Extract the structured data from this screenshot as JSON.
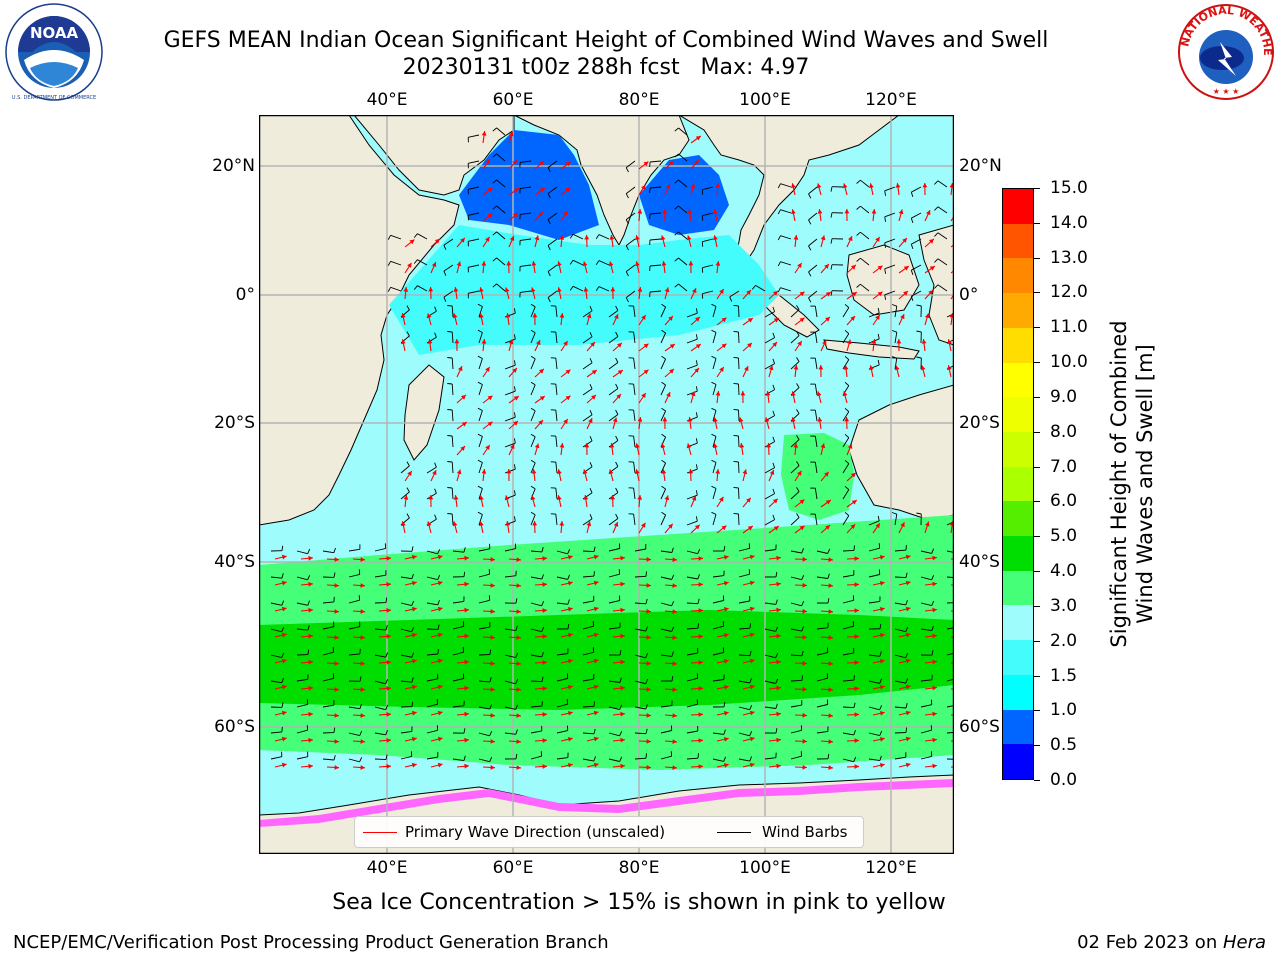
{
  "title": {
    "line1": "GEFS MEAN Indian Ocean Significant Height of Combined Wind Waves and Swell",
    "line2": "20230131 t00z 288h fcst   Max: 4.97"
  },
  "logos": {
    "noaa": {
      "text": "NOAA",
      "ring_text": "NATIONAL OCEANIC AND ATMOSPHERIC ADMINISTRATION · U.S. DEPARTMENT OF COMMERCE"
    },
    "nws": {
      "ring_text": "NATIONAL WEATHER SERVICE"
    }
  },
  "map": {
    "lon_ticks": [
      "40°E",
      "60°E",
      "80°E",
      "100°E",
      "120°E"
    ],
    "lat_ticks_left": [
      "20°N",
      "0°",
      "20°S",
      "40°S",
      "60°S"
    ],
    "lat_ticks_right": [
      "20°N",
      "0°",
      "20°S",
      "40°S",
      "60°S"
    ],
    "land_color": "#efecdc",
    "ocean_base_color": "#9ffcfc"
  },
  "legend": {
    "wave_label": "Primary Wave Direction (unscaled)",
    "wind_label": "Wind Barbs",
    "wave_color": "#ff0000",
    "wind_color": "#000000"
  },
  "colorbar": {
    "label_line1": "Significant Height of Combined",
    "label_line2": "Wind Waves and Swell [m]",
    "ticks": [
      "0.0",
      "0.5",
      "1.0",
      "1.5",
      "2.0",
      "3.0",
      "4.0",
      "5.0",
      "6.0",
      "7.0",
      "8.0",
      "9.0",
      "10.0",
      "11.0",
      "12.0",
      "13.0",
      "14.0",
      "15.0"
    ],
    "colors": [
      "#0000ff",
      "#0066ff",
      "#00ffff",
      "#44fcfc",
      "#9ffcfc",
      "#44ff77",
      "#00dd00",
      "#55ee00",
      "#aaff00",
      "#ccff00",
      "#eeff00",
      "#ffff00",
      "#ffdd00",
      "#ffaa00",
      "#ff8800",
      "#ff5500",
      "#ff0000"
    ]
  },
  "subtitle": "Sea Ice Concentration > 15% is shown in pink to yellow",
  "footer": {
    "left": "NCEP/EMC/Verification Post Processing Product Generation Branch",
    "right_prefix": "02 Feb 2023 on ",
    "right_host": "Hera"
  }
}
